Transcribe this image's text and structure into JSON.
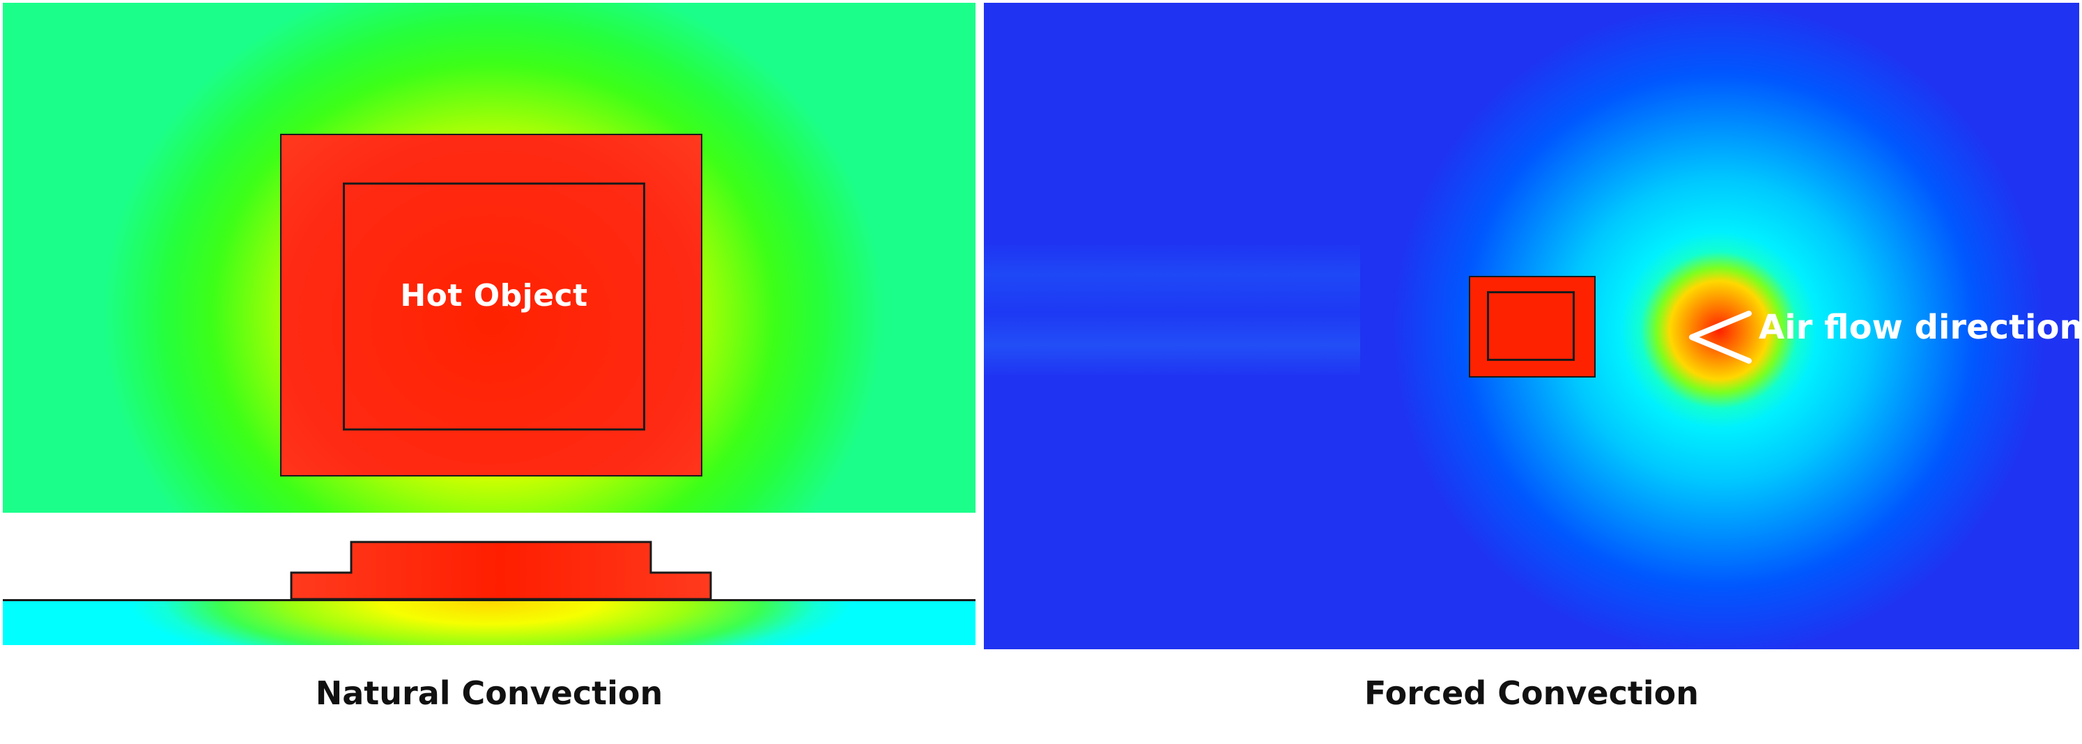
{
  "natural": {
    "object_label": "Hot Object",
    "caption": "Natural Convection",
    "colors": {
      "hot": "#ff2200",
      "warm": "#f6ff00",
      "mild": "#25ff3c",
      "cool": "#00ffff",
      "outline": "#1a1a1a"
    }
  },
  "forced": {
    "flow_label": "Air flow direction",
    "caption": "Forced Convection",
    "arrow_icon": "chevron-left",
    "colors": {
      "hot": "#ff2200",
      "halo": "#00f0ff",
      "field": "#1f2ff0",
      "arrow": "#ffffff"
    }
  }
}
